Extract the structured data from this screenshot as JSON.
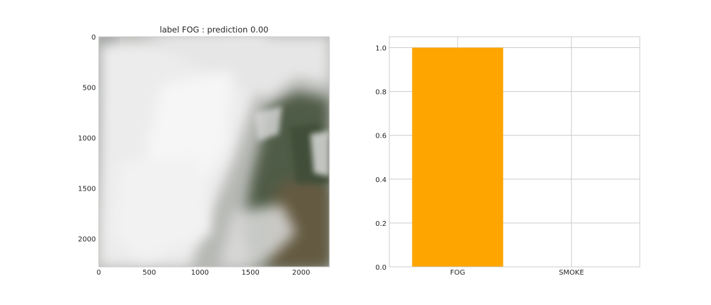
{
  "chart_data": [
    {
      "type": "image",
      "title": "label  FOG : prediction 0.00",
      "xlim": [
        0,
        2280
      ],
      "ylim": [
        2280,
        0
      ],
      "x_ticks": [
        0,
        500,
        1000,
        1500,
        2000
      ],
      "y_ticks": [
        0,
        500,
        1000,
        1500,
        2000
      ],
      "x_tick_labels": [
        "0",
        "500",
        "1000",
        "1500",
        "2000"
      ],
      "y_tick_labels": [
        "0",
        "500",
        "1000",
        "1500",
        "2000"
      ],
      "grid": false
    },
    {
      "type": "bar",
      "title": "",
      "xlabel": "",
      "ylabel": "",
      "categories": [
        "FOG",
        "SMOKE"
      ],
      "values": [
        1.0,
        0.0
      ],
      "ylim": [
        0,
        1.05
      ],
      "y_ticks": [
        0.0,
        0.2,
        0.4,
        0.6,
        0.8,
        1.0
      ],
      "y_tick_labels": [
        "0.0",
        "0.2",
        "0.4",
        "0.6",
        "0.8",
        "1.0"
      ],
      "bar_color": "#ffa500",
      "grid": true
    }
  ]
}
